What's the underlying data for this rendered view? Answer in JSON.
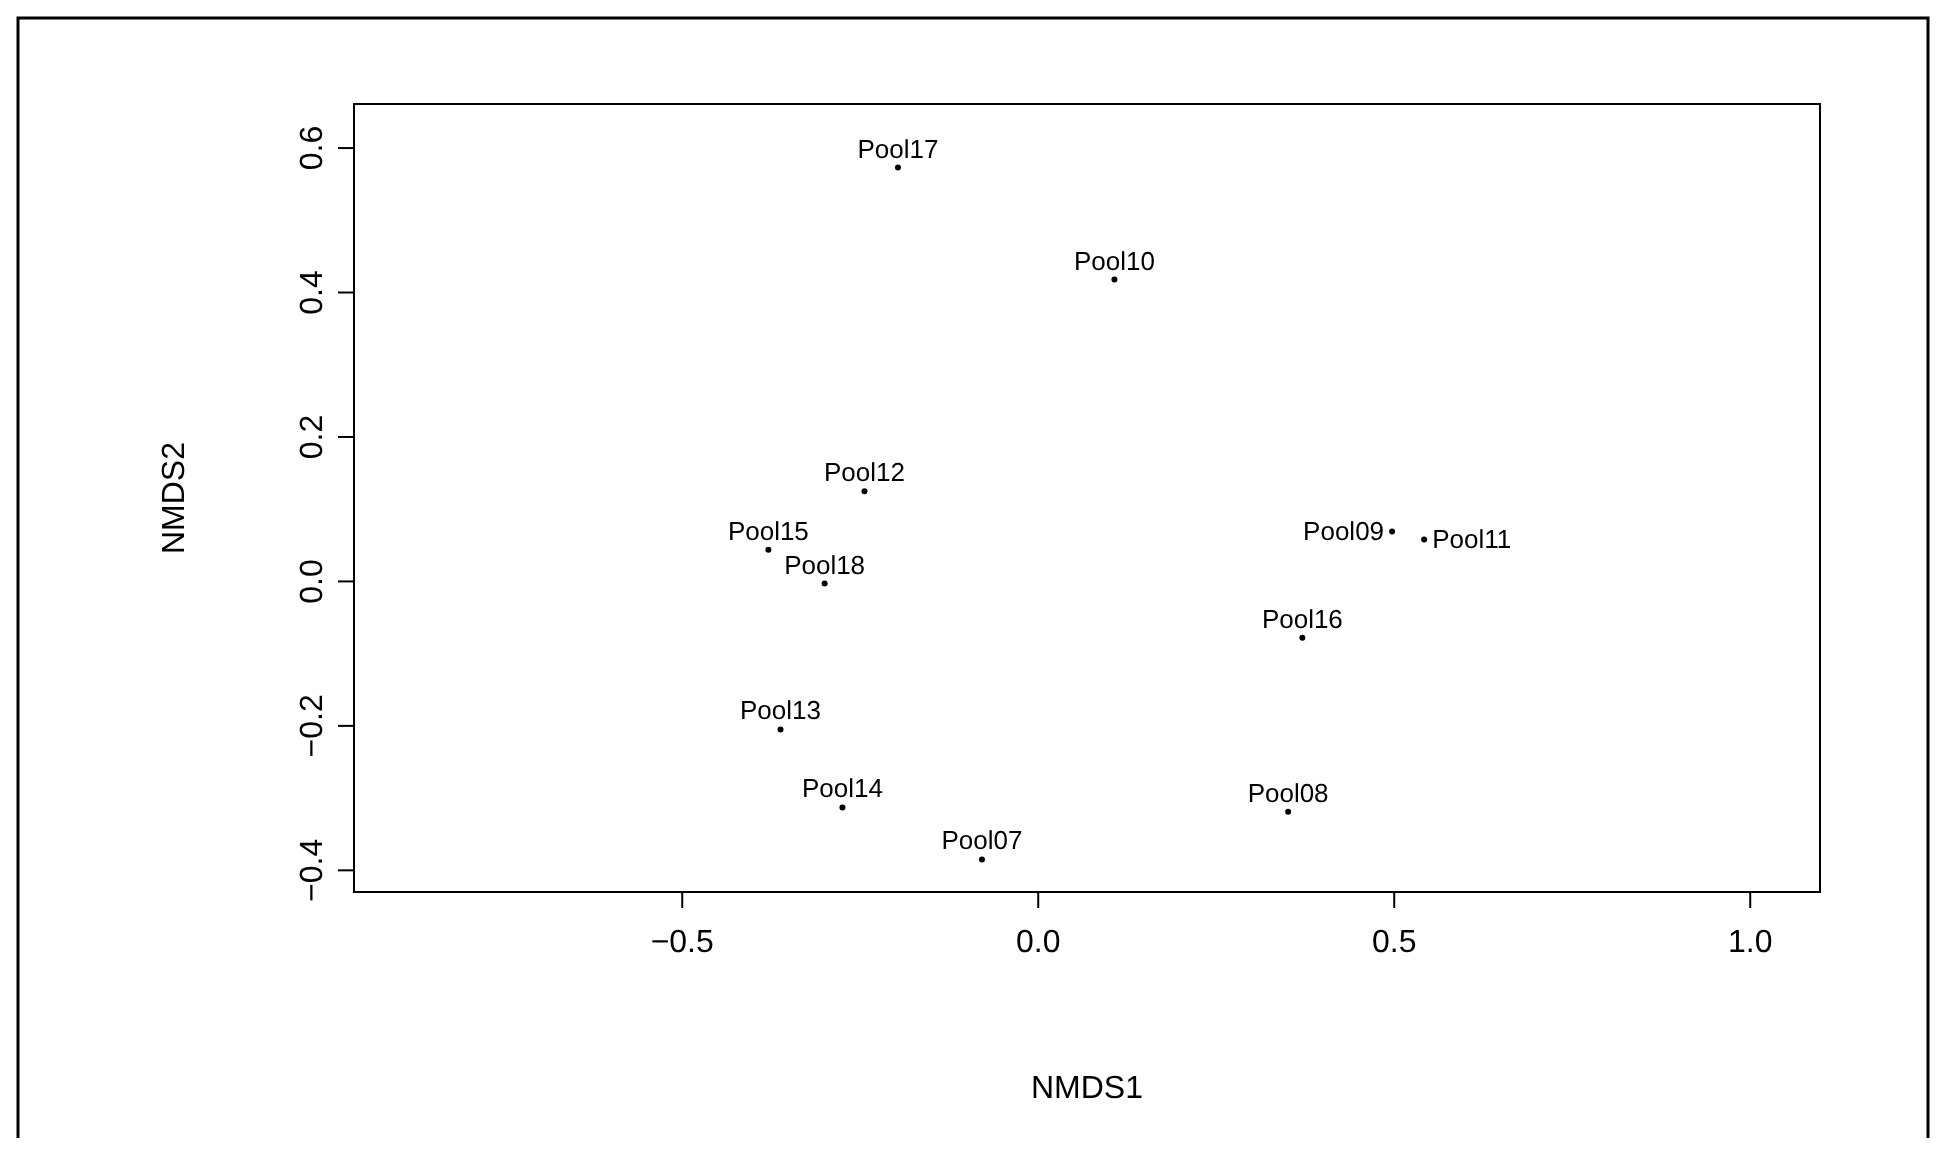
{
  "chart_data": {
    "type": "scatter",
    "xlabel": "NMDS1",
    "ylabel": "NMDS2",
    "marker": "circle",
    "x": [
      -0.197,
      0.107,
      -0.244,
      -0.379,
      -0.3,
      0.497,
      0.542,
      0.371,
      -0.362,
      -0.275,
      0.351,
      -0.079
    ],
    "values": [
      0.573,
      0.418,
      0.125,
      0.044,
      -0.003,
      0.069,
      0.058,
      -0.078,
      -0.205,
      -0.313,
      -0.319,
      -0.385
    ],
    "value_labels": [
      "Pool17",
      "Pool10",
      "Pool12",
      "Pool15",
      "Pool18",
      "Pool09",
      "Pool11",
      "Pool16",
      "Pool13",
      "Pool14",
      "Pool08",
      "Pool07"
    ],
    "color": "#000000",
    "xlim": [
      -0.961,
      1.098
    ],
    "xticks": [
      {
        "value": -0.5,
        "label": "−0.5"
      },
      {
        "value": 0,
        "label": "0.0"
      },
      {
        "value": 0.5,
        "label": "0.5"
      },
      {
        "value": 1,
        "label": "1.0"
      }
    ],
    "ylim": [
      -0.43,
      0.661
    ],
    "yticks": [
      {
        "value": -0.4,
        "label": "−0.4"
      },
      {
        "value": -0.2,
        "label": "−0.2"
      },
      {
        "value": 0,
        "label": "0.0"
      },
      {
        "value": 0.2,
        "label": "0.2"
      },
      {
        "value": 0.4,
        "label": "0.4"
      },
      {
        "value": 0.6,
        "label": "0.6"
      }
    ],
    "grid": false
  }
}
